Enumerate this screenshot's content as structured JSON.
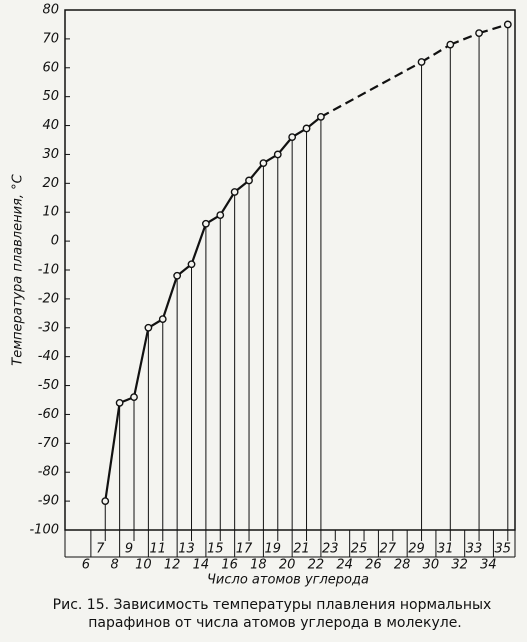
{
  "chart_data": {
    "type": "line",
    "ylabel": "Температура плавления, °C",
    "xlabel": "Число атомов углерода",
    "caption": [
      "Рис. 15. Зависимость температуры плавления нормальных",
      "парафинов от числа атомов углерода в молекуле."
    ],
    "x": [
      7,
      8,
      9,
      10,
      11,
      12,
      13,
      14,
      15,
      16,
      17,
      18,
      19,
      20,
      21,
      22,
      29,
      31,
      33,
      35
    ],
    "values": [
      -90,
      -56,
      -54,
      -30,
      -27,
      -12,
      -8,
      6,
      9,
      17,
      21,
      27,
      30,
      36,
      39,
      43,
      62,
      68,
      72,
      75
    ],
    "color": "#111111",
    "xlim": [
      4.2,
      35.5
    ],
    "ylim": [
      -100,
      80
    ],
    "xticks": [
      6,
      7,
      8,
      9,
      10,
      11,
      12,
      13,
      14,
      15,
      16,
      17,
      18,
      19,
      20,
      21,
      22,
      23,
      24,
      25,
      26,
      27,
      28,
      29,
      30,
      31,
      32,
      33,
      34,
      35
    ],
    "yticks": [
      -100,
      -90,
      -80,
      -70,
      -60,
      -50,
      -40,
      -30,
      -20,
      -10,
      0,
      10,
      20,
      30,
      40,
      50,
      60,
      70,
      80
    ]
  }
}
